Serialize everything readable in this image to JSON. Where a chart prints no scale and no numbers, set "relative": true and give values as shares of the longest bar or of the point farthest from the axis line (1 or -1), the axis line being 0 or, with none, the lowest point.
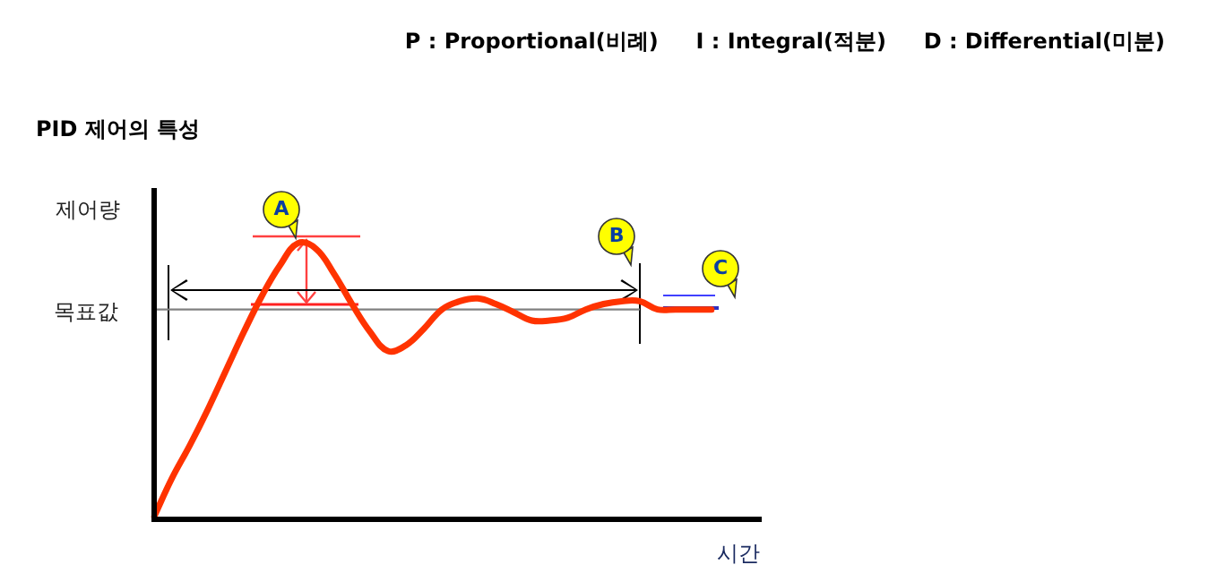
{
  "chart_data": {
    "type": "line",
    "relative": true,
    "title": "PID 제어의 특성",
    "ylabel": "제어량",
    "xlabel": "시간",
    "annotations": [
      "P : Proportional(비례)     I : Integral(적분)     D : Differential(미분)",
      "A",
      "B",
      "C"
    ],
    "categories": [
      null,
      null,
      null,
      null,
      null,
      null,
      null,
      null,
      null,
      null,
      null,
      null,
      null,
      null,
      null,
      null,
      null,
      null,
      null,
      null,
      null,
      null,
      null,
      null,
      null,
      null,
      null,
      null,
      null,
      null,
      null,
      null
    ],
    "series": [
      {
        "color": "#ff3300",
        "values": [
          0.01,
          0.15,
          0.27,
          0.4,
          0.54,
          0.68,
          0.81,
          0.92,
          1,
          0.98,
          0.89,
          0.78,
          0.68,
          0.61,
          0.63,
          0.69,
          0.76,
          0.79,
          0.8,
          0.78,
          0.75,
          0.72,
          0.72,
          0.73,
          0.76,
          0.78,
          0.79,
          0.79,
          0.76,
          0.76,
          0.76,
          0.76
        ]
      }
    ],
    "ref_lines": [
      {
        "axis": "y",
        "value": 0.76,
        "label": "목표값",
        "color": "#808080"
      }
    ],
    "grid": false,
    "legend": false,
    "marker": "none",
    "line_style": "solid"
  }
}
